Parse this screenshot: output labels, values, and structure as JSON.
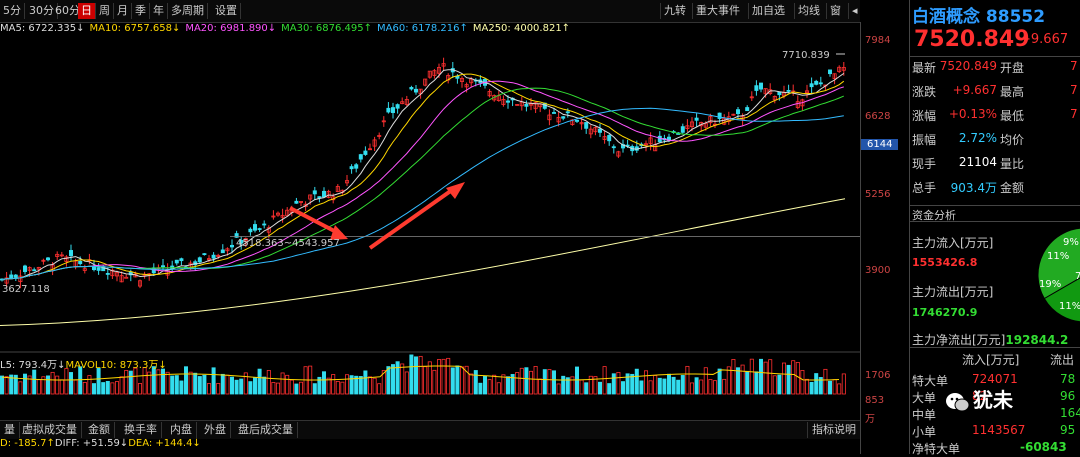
{
  "toolbar": {
    "left_tabs": [
      "5分",
      "30分",
      "60分",
      "日",
      "周",
      "月",
      "季",
      "年",
      "多周期",
      "设置"
    ],
    "right_tabs": [
      "九转",
      "重大事件",
      "加自选",
      "均线",
      "窗",
      "◂"
    ],
    "active": "日"
  },
  "ma_line": [
    {
      "label": "MA5: 6722.335↓",
      "color": "#dddddd"
    },
    {
      "label": "MA10: 6757.658↓",
      "color": "#ffd700"
    },
    {
      "label": "MA20: 6981.890↓",
      "color": "#ff55ff"
    },
    {
      "label": "MA30: 6876.495↑",
      "color": "#33dd33"
    },
    {
      "label": "MA60: 6178.216↑",
      "color": "#33bbff"
    },
    {
      "label": "MA250: 4000.821↑",
      "color": "#ffffaa"
    }
  ],
  "chart": {
    "y_labels": [
      {
        "text": "7984",
        "value": 7984
      },
      {
        "text": "6628",
        "value": 6628
      },
      {
        "text": "6144",
        "value": 6144,
        "highlight": true
      },
      {
        "text": "5256",
        "value": 5256
      },
      {
        "text": "3900",
        "value": 3900
      }
    ],
    "high_label": "7710.839",
    "mid_label": "4518.363~4543.957",
    "low_label": "3627.118",
    "vol_labels": [
      "1706",
      "853",
      "万"
    ]
  },
  "vol_header": [
    {
      "label": "L5: 793.4万↓",
      "color": "#dddddd"
    },
    {
      "label": "MAVOL10: 873.3万↓",
      "color": "#ffd700"
    }
  ],
  "bottom_tabs": [
    "量",
    "虚拟成交量",
    "金额",
    "换手率",
    "内盘",
    "外盘",
    "盘后成交量"
  ],
  "bottom_right": "指标说明",
  "macd": [
    {
      "label": "D: -185.7↑",
      "color": "#ffd700"
    },
    {
      "label": "DIFF: +51.59↓",
      "color": "#dddddd"
    },
    {
      "label": "DEA: +144.4↓",
      "color": "#ffd700"
    }
  ],
  "quote": {
    "title": "白酒概念 88552",
    "price": "7520.849",
    "change": "+9.667",
    "rows": [
      {
        "l": "最新",
        "v": "7520.849",
        "vc": "#ff3030",
        "l2": "开盘",
        "v2": "7"
      },
      {
        "l": "涨跌",
        "v": "+9.667",
        "vc": "#ff3030",
        "l2": "最高",
        "v2": "7"
      },
      {
        "l": "涨幅",
        "v": "+0.13%",
        "vc": "#ff3030",
        "l2": "最低",
        "v2": "7"
      },
      {
        "l": "振幅",
        "v": "2.72%",
        "vc": "#33ccff",
        "l2": "均价",
        "v2": ""
      },
      {
        "l": "现手",
        "v": "21104",
        "vc": "#ffffff",
        "l2": "量比",
        "v2": ""
      },
      {
        "l": "总手",
        "v": "903.4万",
        "vc": "#33ccff",
        "l2": "金额",
        "v2": ""
      }
    ]
  },
  "fund": {
    "title": "资金分析",
    "inflow_label": "主力流入[万元]",
    "inflow": "1553426.8",
    "outflow_label": "主力流出[万元]",
    "outflow": "1746270.9",
    "net_label": "主力净流出[万元]",
    "net": "192844.2",
    "pie": [
      "9%",
      "11%",
      "19%",
      "11%",
      "7"
    ],
    "table_header": [
      "流入[万元]",
      "流出"
    ],
    "rows": [
      {
        "l": "特大单",
        "v": "724071",
        "v2": "78"
      },
      {
        "l": "大单",
        "v": "82",
        "v2": "96"
      },
      {
        "l": "中单",
        "v": "",
        "v2": "164"
      },
      {
        "l": "小单",
        "v": "1143567",
        "v2": "95"
      }
    ],
    "net_big_label": "净特大单",
    "net_big": "-60843"
  },
  "watermark": "犹未"
}
